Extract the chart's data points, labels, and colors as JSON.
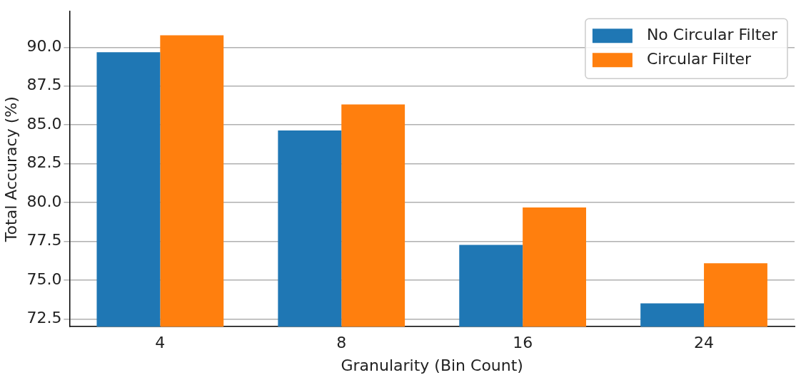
{
  "chart_data": {
    "type": "bar",
    "xlabel": "Granularity (Bin Count)",
    "ylabel": "Total Accuracy (%)",
    "categories": [
      "4",
      "8",
      "16",
      "24"
    ],
    "series": [
      {
        "name": "No Circular Filter",
        "color": "#1f77b4",
        "values": [
          89.68,
          84.64,
          77.27,
          73.5
        ]
      },
      {
        "name": "Circular Filter",
        "color": "#ff7f0e",
        "values": [
          90.77,
          86.32,
          79.68,
          76.09
        ]
      }
    ],
    "ylim": [
      72,
      92.3
    ],
    "yticks": [
      {
        "value": 72.5,
        "label": "72.5"
      },
      {
        "value": 75,
        "label": "75.0"
      },
      {
        "value": 77.5,
        "label": "77.5"
      },
      {
        "value": 80,
        "label": "80.0"
      },
      {
        "value": 82.5,
        "label": "82.5"
      },
      {
        "value": 85,
        "label": "85.0"
      },
      {
        "value": 87.5,
        "label": "87.5"
      },
      {
        "value": 90,
        "label": "90.0"
      }
    ],
    "grid": "y",
    "legend": "top right"
  }
}
